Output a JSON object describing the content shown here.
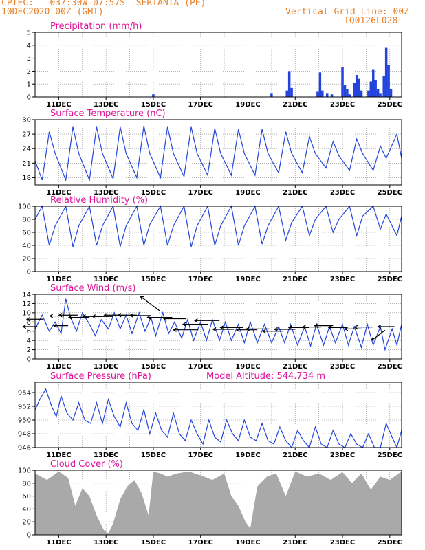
{
  "header": {
    "source": "CPTEC:",
    "coords": "037:30W-07:57S",
    "location": "SERTANIA (PE)",
    "init_time": "10DEC2020 00Z (GMT)",
    "grid_note": "Vertical Grid Line: 00Z",
    "model_id": "TQ0126L028"
  },
  "colors": {
    "header": "#e8822a",
    "title": "#e0119a",
    "line": "#2244dd",
    "cloud": "#a9a9a9",
    "wind_arrow": "#000000"
  },
  "x_axis": {
    "tick_labels": [
      "11DEC",
      "13DEC",
      "15DEC",
      "17DEC",
      "19DEC",
      "21DEC",
      "23DEC",
      "25DEC"
    ],
    "range_days": [
      10,
      25.5
    ],
    "vertical_grid": "00Z"
  },
  "chart_data": [
    {
      "type": "bar",
      "title": "Precipitation (mm/h)",
      "ylim": [
        0,
        5
      ],
      "yticks": [
        0,
        1,
        2,
        3,
        4,
        5
      ],
      "x": [
        15.0,
        20.0,
        20.65,
        20.75,
        20.85,
        21.95,
        22.05,
        22.15,
        22.35,
        22.55,
        23.0,
        23.1,
        23.2,
        23.3,
        23.5,
        23.6,
        23.7,
        23.8,
        24.1,
        24.2,
        24.3,
        24.4,
        24.5,
        24.6,
        24.75,
        24.85,
        24.95,
        25.05
      ],
      "values": [
        0.2,
        0.3,
        0.5,
        2.0,
        0.7,
        0.4,
        1.9,
        0.5,
        0.3,
        0.2,
        2.3,
        0.9,
        0.6,
        0.2,
        1.1,
        1.7,
        1.4,
        0.5,
        0.5,
        1.2,
        2.1,
        1.3,
        0.6,
        0.3,
        1.6,
        3.8,
        2.5,
        0.6
      ]
    },
    {
      "type": "line",
      "title": "Surface Temperature (nC)",
      "ylim": [
        16.5,
        30
      ],
      "yticks": [
        18,
        21,
        24,
        27,
        30
      ],
      "series": [
        {
          "x": [
            10.0,
            10.3,
            10.6,
            10.85,
            11.3,
            11.6,
            11.85,
            12.3,
            12.6,
            12.85,
            13.3,
            13.6,
            13.85,
            14.3,
            14.6,
            14.85,
            15.3,
            15.6,
            15.85,
            16.3,
            16.6,
            16.85,
            17.3,
            17.6,
            17.85,
            18.3,
            18.6,
            18.85,
            19.3,
            19.6,
            19.85,
            20.3,
            20.6,
            20.85,
            21.3,
            21.6,
            21.85,
            22.3,
            22.6,
            22.85,
            23.3,
            23.6,
            23.85,
            24.3,
            24.6,
            24.85,
            25.3,
            25.5
          ],
          "values": [
            21.5,
            17.5,
            27.5,
            23.0,
            17.5,
            28.5,
            23.0,
            17.5,
            28.5,
            23.0,
            17.8,
            28.5,
            23.0,
            18.0,
            28.7,
            23.0,
            18.0,
            28.5,
            23.0,
            18.2,
            28.5,
            23.0,
            18.5,
            28.2,
            23.0,
            18.5,
            28.0,
            23.0,
            18.5,
            28.0,
            23.0,
            19.0,
            27.5,
            23.0,
            19.0,
            26.5,
            23.0,
            20.0,
            25.5,
            22.5,
            19.5,
            26.0,
            23.0,
            19.5,
            24.5,
            22.0,
            27.0,
            22.0
          ]
        }
      ]
    },
    {
      "type": "line",
      "title": "Relative Humidity (%)",
      "ylim": [
        0,
        100
      ],
      "yticks": [
        0,
        20,
        40,
        60,
        80,
        100
      ],
      "series": [
        {
          "x": [
            10.0,
            10.3,
            10.6,
            10.85,
            11.3,
            11.6,
            11.85,
            12.3,
            12.6,
            12.85,
            13.3,
            13.6,
            13.85,
            14.3,
            14.6,
            14.85,
            15.3,
            15.6,
            15.85,
            16.3,
            16.6,
            16.85,
            17.3,
            17.6,
            17.85,
            18.3,
            18.6,
            18.85,
            19.3,
            19.6,
            19.85,
            20.3,
            20.6,
            20.85,
            21.3,
            21.6,
            21.85,
            22.3,
            22.6,
            22.85,
            23.3,
            23.6,
            23.85,
            24.3,
            24.6,
            24.85,
            25.3,
            25.5
          ],
          "values": [
            80,
            100,
            40,
            70,
            100,
            38,
            70,
            100,
            40,
            70,
            100,
            38,
            70,
            100,
            40,
            72,
            100,
            40,
            70,
            100,
            38,
            70,
            100,
            40,
            70,
            100,
            40,
            70,
            100,
            42,
            70,
            100,
            48,
            75,
            100,
            55,
            80,
            100,
            60,
            80,
            100,
            55,
            85,
            100,
            65,
            88,
            55,
            85
          ]
        }
      ]
    },
    {
      "type": "line",
      "title": "Surface Wind (m/s)",
      "ylim": [
        0,
        14
      ],
      "yticks": [
        0,
        2,
        4,
        6,
        8,
        10,
        12,
        14
      ],
      "series": [
        {
          "x": [
            10.0,
            10.3,
            10.6,
            10.85,
            11.1,
            11.3,
            11.5,
            11.75,
            12.0,
            12.3,
            12.55,
            12.8,
            13.1,
            13.35,
            13.6,
            13.85,
            14.1,
            14.4,
            14.65,
            14.9,
            15.1,
            15.4,
            15.65,
            15.9,
            16.2,
            16.45,
            16.7,
            17.0,
            17.25,
            17.5,
            17.8,
            18.05,
            18.3,
            18.6,
            18.85,
            19.1,
            19.4,
            19.7,
            20.0,
            20.3,
            20.55,
            20.8,
            21.1,
            21.4,
            21.65,
            21.9,
            22.2,
            22.45,
            22.7,
            23.0,
            23.25,
            23.5,
            23.8,
            24.05,
            24.3,
            24.6,
            24.8,
            25.1,
            25.3,
            25.5
          ],
          "values": [
            6.5,
            9.5,
            6.0,
            8.0,
            5.5,
            13.0,
            9.0,
            6.0,
            10.0,
            7.5,
            5.0,
            8.5,
            6.5,
            10.0,
            6.5,
            9.5,
            5.5,
            10.0,
            6.0,
            9.0,
            5.0,
            10.0,
            5.5,
            8.0,
            4.5,
            8.5,
            4.0,
            8.0,
            4.0,
            8.5,
            4.0,
            8.0,
            4.0,
            7.5,
            3.5,
            8.0,
            3.5,
            7.5,
            3.5,
            7.0,
            3.5,
            7.5,
            3.0,
            7.0,
            2.8,
            7.5,
            3.0,
            7.0,
            3.5,
            7.5,
            3.0,
            7.0,
            2.5,
            7.5,
            3.0,
            7.0,
            2.0,
            6.5,
            3.0,
            7.5
          ]
        }
      ],
      "wind_arrows": [
        {
          "x": 10.1,
          "y": 7.0,
          "dir": "W",
          "len": 0.35
        },
        {
          "x": 10.35,
          "y": 8.6,
          "dir": "W",
          "len": 0.4
        },
        {
          "x": 11.15,
          "y": 9.3,
          "dir": "W",
          "len": 0.3
        },
        {
          "x": 11.4,
          "y": 7.2,
          "dir": "W",
          "len": 0.35
        },
        {
          "x": 11.8,
          "y": 9.5,
          "dir": "W",
          "len": 0.45
        },
        {
          "x": 12.3,
          "y": 9.0,
          "dir": "W",
          "len": 0.5
        },
        {
          "x": 12.8,
          "y": 9.2,
          "dir": "W",
          "len": 0.45
        },
        {
          "x": 13.3,
          "y": 9.2,
          "dir": "W",
          "len": 0.5
        },
        {
          "x": 13.8,
          "y": 9.5,
          "dir": "W",
          "len": 0.5
        },
        {
          "x": 14.3,
          "y": 9.5,
          "dir": "W",
          "len": 0.45
        },
        {
          "x": 14.9,
          "y": 9.4,
          "dir": "W",
          "len": 0.5
        },
        {
          "x": 15.3,
          "y": 10.3,
          "dir": "NW",
          "len": 0.6
        },
        {
          "x": 15.8,
          "y": 9.0,
          "dir": "W",
          "len": 0.6
        },
        {
          "x": 16.4,
          "y": 8.7,
          "dir": "W",
          "len": 0.55
        },
        {
          "x": 16.9,
          "y": 6.3,
          "dir": "W",
          "len": 0.6
        },
        {
          "x": 17.3,
          "y": 7.5,
          "dir": "W",
          "len": 0.6
        },
        {
          "x": 17.8,
          "y": 8.3,
          "dir": "W",
          "len": 0.6
        },
        {
          "x": 18.4,
          "y": 6.4,
          "dir": "W",
          "len": 0.5
        },
        {
          "x": 18.8,
          "y": 6.8,
          "dir": "W",
          "len": 0.55
        },
        {
          "x": 19.4,
          "y": 6.3,
          "dir": "W",
          "len": 0.5
        },
        {
          "x": 19.9,
          "y": 6.5,
          "dir": "W",
          "len": 0.55
        },
        {
          "x": 20.5,
          "y": 6.0,
          "dir": "W",
          "len": 0.5
        },
        {
          "x": 21.0,
          "y": 6.4,
          "dir": "W",
          "len": 0.5
        },
        {
          "x": 21.6,
          "y": 6.8,
          "dir": "W",
          "len": 0.5
        },
        {
          "x": 22.1,
          "y": 6.9,
          "dir": "W",
          "len": 0.45
        },
        {
          "x": 22.6,
          "y": 7.2,
          "dir": "W",
          "len": 0.45
        },
        {
          "x": 23.2,
          "y": 6.8,
          "dir": "W",
          "len": 0.45
        },
        {
          "x": 23.8,
          "y": 6.5,
          "dir": "W",
          "len": 0.4
        },
        {
          "x": 24.3,
          "y": 6.9,
          "dir": "W",
          "len": 0.45
        },
        {
          "x": 24.8,
          "y": 6.2,
          "dir": "SW",
          "len": 0.4
        },
        {
          "x": 25.2,
          "y": 7.0,
          "dir": "W",
          "len": 0.4
        }
      ]
    },
    {
      "type": "line",
      "title": "Surface Pressure (hPa)",
      "subtitle": "Model Altitude: 544.734 m",
      "ylim": [
        946,
        955.5
      ],
      "yticks": [
        946,
        948,
        950,
        952,
        954
      ],
      "series": [
        {
          "x": [
            10.0,
            10.2,
            10.45,
            10.7,
            10.9,
            11.1,
            11.35,
            11.6,
            11.85,
            12.1,
            12.35,
            12.6,
            12.85,
            13.1,
            13.35,
            13.6,
            13.85,
            14.1,
            14.35,
            14.6,
            14.85,
            15.1,
            15.35,
            15.6,
            15.85,
            16.1,
            16.35,
            16.6,
            16.85,
            17.1,
            17.35,
            17.6,
            17.85,
            18.1,
            18.35,
            18.6,
            18.85,
            19.1,
            19.35,
            19.6,
            19.85,
            20.1,
            20.35,
            20.6,
            20.85,
            21.1,
            21.35,
            21.6,
            21.85,
            22.1,
            22.35,
            22.6,
            22.85,
            23.1,
            23.35,
            23.6,
            23.85,
            24.1,
            24.35,
            24.6,
            24.85,
            25.1,
            25.3,
            25.5
          ],
          "values": [
            951.5,
            953.0,
            954.5,
            952.0,
            950.5,
            953.5,
            951.0,
            950.0,
            952.5,
            950.0,
            949.5,
            952.5,
            949.5,
            953.0,
            950.5,
            949.0,
            952.5,
            949.5,
            948.5,
            951.5,
            948.0,
            951.0,
            948.5,
            947.5,
            951.0,
            948.0,
            947.0,
            950.0,
            948.0,
            946.5,
            950.0,
            947.5,
            946.8,
            950.0,
            948.0,
            947.0,
            950.0,
            947.5,
            947.0,
            949.5,
            947.0,
            946.5,
            949.0,
            947.0,
            946.0,
            948.5,
            947.0,
            946.0,
            949.0,
            946.5,
            946.0,
            948.5,
            946.5,
            946.0,
            948.0,
            946.5,
            946.0,
            948.0,
            946.0,
            946.0,
            949.5,
            947.5,
            946.0,
            948.5
          ]
        }
      ]
    },
    {
      "type": "area",
      "title": "Cloud Cover (%)",
      "ylim": [
        0,
        100
      ],
      "yticks": [
        0,
        20,
        40,
        60,
        80,
        100
      ],
      "series": [
        {
          "x": [
            10.0,
            10.5,
            11.0,
            11.4,
            11.7,
            12.0,
            12.3,
            12.6,
            12.9,
            13.1,
            13.3,
            13.6,
            13.9,
            14.2,
            14.5,
            14.8,
            15.0,
            15.3,
            15.6,
            16.0,
            16.5,
            17.0,
            17.5,
            18.0,
            18.3,
            18.6,
            18.9,
            19.1,
            19.4,
            19.8,
            20.2,
            20.6,
            21.0,
            21.5,
            22.0,
            22.5,
            23.0,
            23.4,
            23.8,
            24.2,
            24.6,
            25.0,
            25.5
          ],
          "values": [
            95,
            85,
            98,
            88,
            45,
            72,
            60,
            30,
            8,
            2,
            18,
            55,
            75,
            85,
            65,
            30,
            98,
            95,
            90,
            95,
            98,
            92,
            85,
            95,
            60,
            45,
            20,
            10,
            75,
            90,
            95,
            60,
            98,
            90,
            95,
            85,
            97,
            80,
            95,
            70,
            90,
            85,
            98
          ]
        }
      ]
    }
  ]
}
